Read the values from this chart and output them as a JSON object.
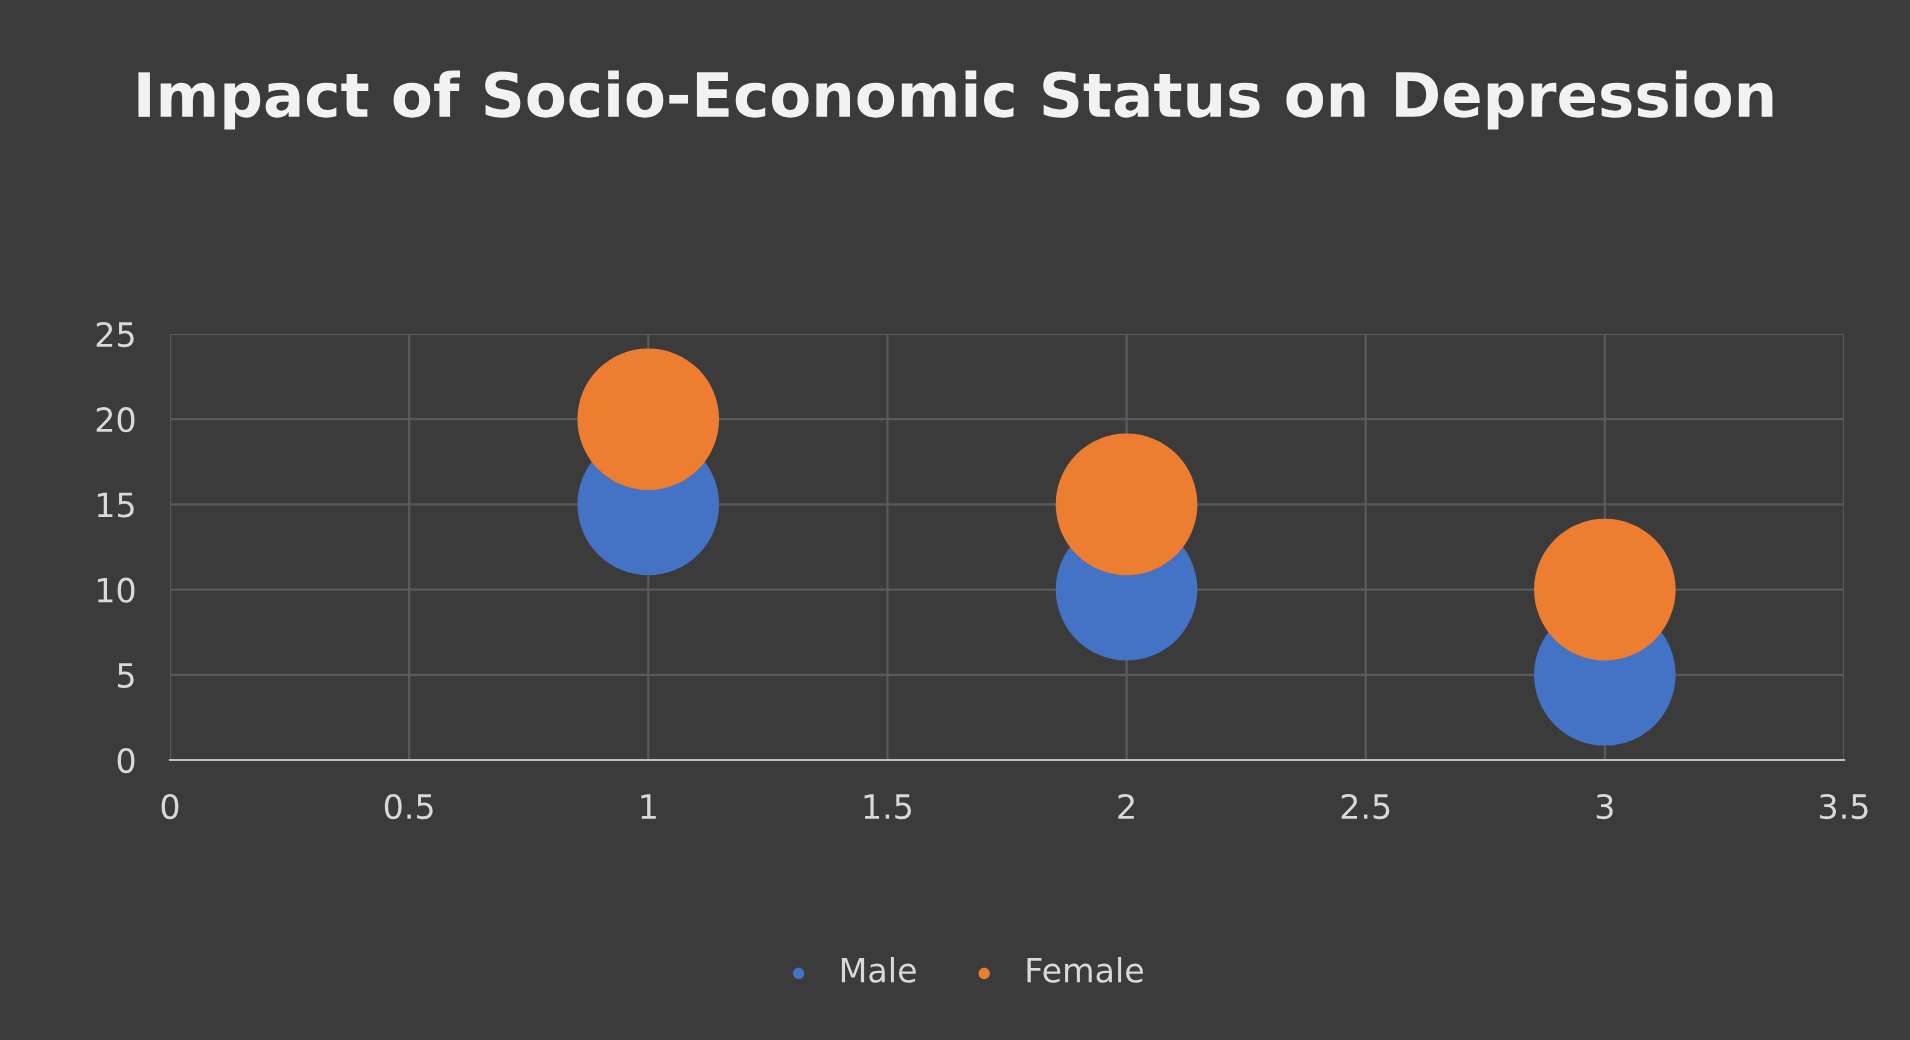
{
  "chart_data": {
    "type": "scatter",
    "title": "Impact of Socio-Economic Status on Depression",
    "x": [
      1,
      2,
      3
    ],
    "series": [
      {
        "name": "Male",
        "color": "#4472c4",
        "values": [
          15,
          10,
          5
        ]
      },
      {
        "name": "Female",
        "color": "#ed7d31",
        "values": [
          20,
          15,
          10
        ]
      }
    ],
    "xlim": [
      0,
      3.5
    ],
    "xticks": [
      0,
      0.5,
      1,
      1.5,
      2,
      2.5,
      3,
      3.5
    ],
    "ylim": [
      0,
      25
    ],
    "yticks": [
      0,
      5,
      10,
      15,
      20,
      25
    ],
    "grid": true,
    "legend": "bottom",
    "marker": "circle"
  }
}
